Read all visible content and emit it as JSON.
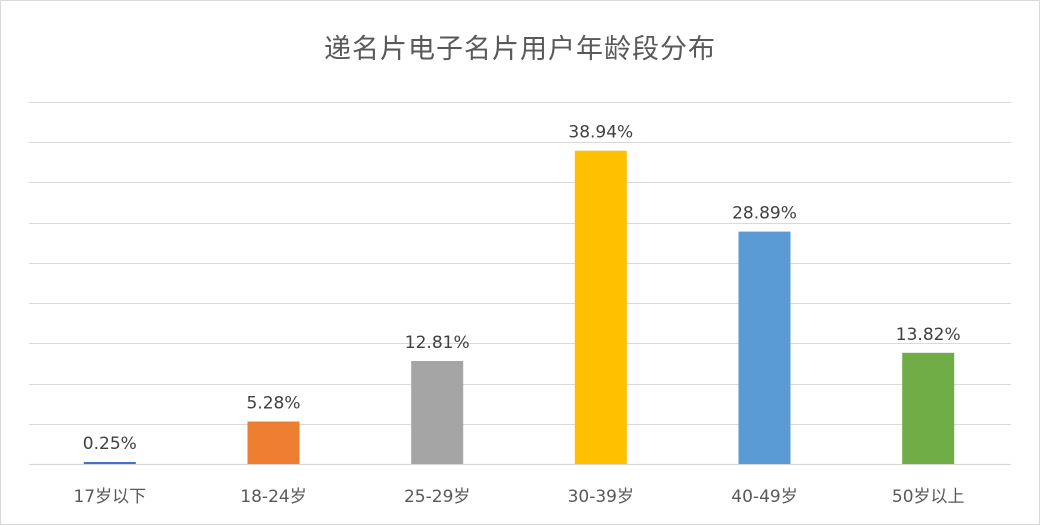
{
  "chart_data": {
    "type": "bar",
    "title": "递名片电子名片用户年龄段分布",
    "xlabel": "",
    "ylabel": "",
    "ylim": [
      0,
      45
    ],
    "grid": true,
    "legend": "none",
    "categories": [
      "17岁以下",
      "18-24岁",
      "25-29岁",
      "30-39岁",
      "40-49岁",
      "50岁以上"
    ],
    "values": [
      0.25,
      5.28,
      12.81,
      38.94,
      28.89,
      13.82
    ],
    "value_labels": [
      "0.25%",
      "5.28%",
      "12.81%",
      "38.94%",
      "28.89%",
      "13.82%"
    ],
    "colors": [
      "#4472c4",
      "#ed7d31",
      "#a5a5a5",
      "#ffc000",
      "#5b9bd5",
      "#70ad47"
    ]
  }
}
